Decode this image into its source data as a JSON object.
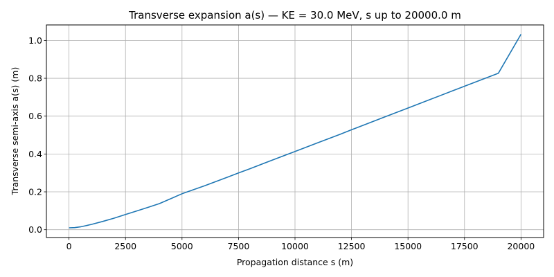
{
  "chart_data": {
    "type": "line",
    "title": "Transverse expansion a(s) — KE = 30.0 MeV, s up to 20000.0 m",
    "xlabel": "Propagation distance s (m)",
    "ylabel": "Transverse semi-axis a(s) (m)",
    "xlim": [
      -1000,
      21000
    ],
    "ylim": [
      -0.0414,
      1.0819
    ],
    "grid": true,
    "xticks": [
      0,
      2500,
      5000,
      7500,
      10000,
      12500,
      15000,
      17500,
      20000
    ],
    "yticks": [
      0.0,
      0.2,
      0.4,
      0.6,
      0.8,
      1.0
    ],
    "xtick_labels": [
      "0",
      "2500",
      "5000",
      "7500",
      "10000",
      "12500",
      "15000",
      "17500",
      "20000"
    ],
    "ytick_labels": [
      "0.0",
      "0.2",
      "0.4",
      "0.6",
      "0.8",
      "1.0"
    ],
    "series": [
      {
        "color": "#1f77b4",
        "x": [
          0,
          250,
          500,
          750,
          1000,
          1500,
          2000,
          2500,
          3000,
          3500,
          4000,
          5000,
          6000,
          7000,
          7500,
          8000,
          9000,
          10000,
          11000,
          12000,
          12500,
          13000,
          14000,
          15000,
          16000,
          17000,
          17500,
          18000,
          19000,
          20000
        ],
        "y": [
          0.01,
          0.011,
          0.015,
          0.021,
          0.028,
          0.044,
          0.061,
          0.08,
          0.099,
          0.118,
          0.138,
          0.19,
          0.232,
          0.277,
          0.3,
          0.322,
          0.368,
          0.413,
          0.459,
          0.504,
          0.528,
          0.551,
          0.597,
          0.643,
          0.689,
          0.735,
          0.758,
          0.781,
          0.827,
          1.033
        ]
      }
    ]
  }
}
